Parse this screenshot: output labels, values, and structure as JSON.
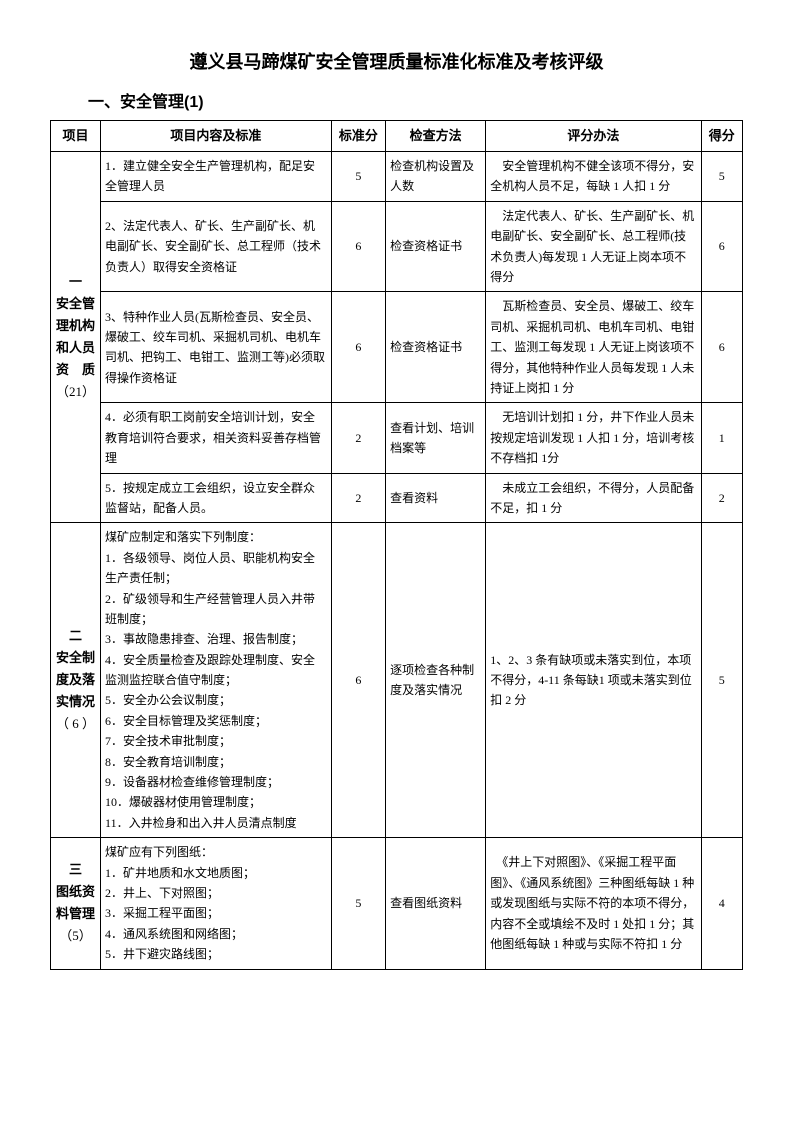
{
  "title": "遵义县马蹄煤矿安全管理质量标准化标准及考核评级",
  "section": "一、安全管理(1)",
  "columns": {
    "c1": "项目",
    "c2": "项目内容及标准",
    "c3": "标准分",
    "c4": "检查方法",
    "c5": "评分办法",
    "c6": "得分"
  },
  "widths": {
    "c1": 46,
    "c2": 212,
    "c3": 50,
    "c4": 92,
    "c5": 198,
    "c6": 38
  },
  "cat1": {
    "num": "一",
    "name": "安全管理机构和人员资　质",
    "pts": "（21）",
    "rows": [
      {
        "content": "1．建立健全安全生产管理机构，配足安全管理人员",
        "std": "5",
        "method": "检查机构设置及人数",
        "scoring": "　安全管理机构不健全该项不得分，安全机构人员不足，每缺 1 人扣 1 分",
        "score": "5"
      },
      {
        "content": "2、法定代表人、矿长、生产副矿长、机电副矿长、安全副矿长、总工程师（技术负责人）取得安全资格证",
        "std": "6",
        "method": "检查资格证书",
        "scoring": "　法定代表人、矿长、生产副矿长、机电副矿长、安全副矿长、总工程师(技术负责人)每发现 1 人无证上岗本项不得分",
        "score": "6"
      },
      {
        "content": "3、特种作业人员(瓦斯检查员、安全员、爆破工、绞车司机、采掘机司机、电机车司机、把钩工、电钳工、监测工等)必须取得操作资格证",
        "std": "6",
        "method": "检查资格证书",
        "scoring": "　瓦斯检查员、安全员、爆破工、绞车司机、采掘机司机、电机车司机、电钳工、监测工每发现 1 人无证上岗该项不得分，其他特种作业人员每发现 1 人未持证上岗扣 1 分",
        "score": "6"
      },
      {
        "content": "4．必须有职工岗前安全培训计划，安全教育培训符合要求，相关资料妥善存档管理",
        "std": "2",
        "method": "查看计划、培训档案等",
        "scoring": "　无培训计划扣 1 分，井下作业人员未按规定培训发现 1 人扣 1 分，培训考核不存档扣 1分",
        "score": "1"
      },
      {
        "content": "5．按规定成立工会组织，设立安全群众监督站，配备人员。",
        "std": "2",
        "method": "查看资料",
        "scoring": "　未成立工会组织，不得分，人员配备不足，扣 1 分",
        "score": "2"
      }
    ]
  },
  "cat2": {
    "num": "二",
    "name": "安全制度及落实情况",
    "pts": "（ 6 ）",
    "row": {
      "content": "煤矿应制定和落实下列制度：\n1．各级领导、岗位人员、职能机构安全生产责任制；\n2．矿级领导和生产经营管理人员入井带班制度；\n3．事故隐患排查、治理、报告制度；\n4．安全质量检查及跟踪处理制度、安全监测监控联合值守制度；\n5．安全办公会议制度；\n6．安全目标管理及奖惩制度；\n7．安全技术审批制度；\n8．安全教育培训制度；\n9．设备器材检查维修管理制度；\n10．爆破器材使用管理制度；\n11．入井检身和出入井人员清点制度",
      "std": "6",
      "method": "逐项检查各种制度及落实情况",
      "scoring": "1、2、3 条有缺项或未落实到位，本项不得分，4-11 条每缺1 项或未落实到位扣 2 分",
      "score": "5"
    }
  },
  "cat3": {
    "num": "三",
    "name": "图纸资料管理",
    "pts": "（5）",
    "row": {
      "content": "煤矿应有下列图纸：\n1．矿井地质和水文地质图；\n2．井上、下对照图；\n3．采掘工程平面图；\n4．通风系统图和网络图；\n5．井下避灾路线图；",
      "std": "5",
      "method": "查看图纸资料",
      "scoring": "　《井上下对照图》、《采掘工程平面图》、《通风系统图》三种图纸每缺 1 种或发现图纸与实际不符的本项不得分，内容不全或填绘不及时 1 处扣 1 分；其他图纸每缺 1 种或与实际不符扣 1 分",
      "score": "4"
    }
  }
}
